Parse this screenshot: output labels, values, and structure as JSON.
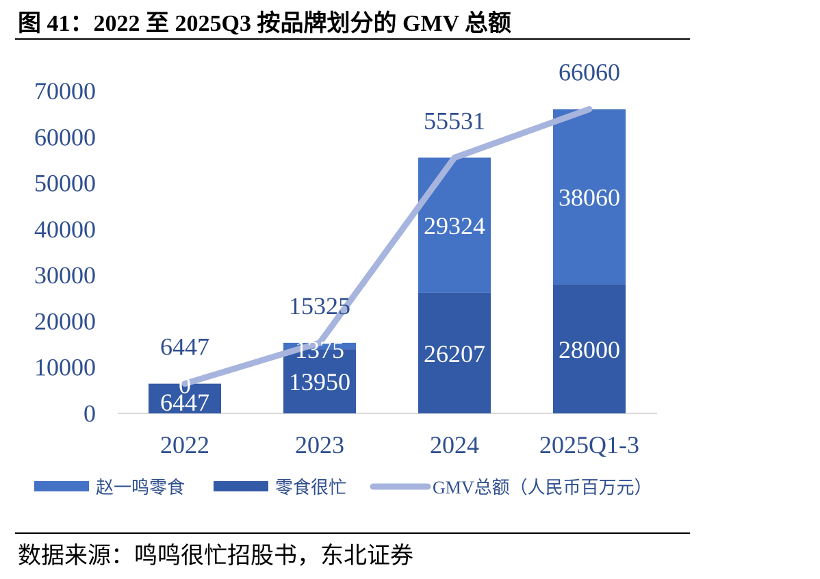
{
  "figure": {
    "title": "图 41：2022 至 2025Q3 按品牌划分的 GMV 总额",
    "source": "数据来源：鸣鸣很忙招股书，东北证券"
  },
  "colors": {
    "zhaoyiming": "#4472C4",
    "lingshihenmang": "#335AA6",
    "gmv_line": "#A6B4DE",
    "label_text": "#2F4F8F",
    "axis_text": "#2F4F8F"
  },
  "chart_data": {
    "type": "bar",
    "stacked": true,
    "categories": [
      "2022",
      "2023",
      "2024",
      "2025Q1-3"
    ],
    "ylim": [
      0,
      70000
    ],
    "yticks": [
      "0",
      "10000",
      "20000",
      "30000",
      "40000",
      "50000",
      "60000",
      "70000"
    ],
    "grid": false,
    "legend_position": "bottom",
    "series": [
      {
        "name": "零食很忙",
        "type": "bar",
        "values": [
          6447,
          13950,
          26207,
          28000
        ],
        "labels": [
          "6447",
          "13950",
          "26207",
          "28000"
        ]
      },
      {
        "name": "赵一鸣零食",
        "type": "bar",
        "values": [
          0,
          1375,
          29324,
          38060
        ],
        "labels": [
          "0",
          "1375",
          "29324",
          "38060"
        ]
      },
      {
        "name": "GMV总额（人民币百万元）",
        "type": "line",
        "values": [
          6447,
          15325,
          55531,
          66060
        ],
        "labels": [
          "6447",
          "15325",
          "55531",
          "66060"
        ]
      }
    ],
    "legend": [
      {
        "name": "赵一鸣零食",
        "kind": "bar",
        "color": "#4472C4"
      },
      {
        "name": "零食很忙",
        "kind": "bar",
        "color": "#335AA6"
      },
      {
        "name": "GMV总额（人民币百万元）",
        "kind": "line",
        "color": "#A6B4DE"
      }
    ]
  }
}
